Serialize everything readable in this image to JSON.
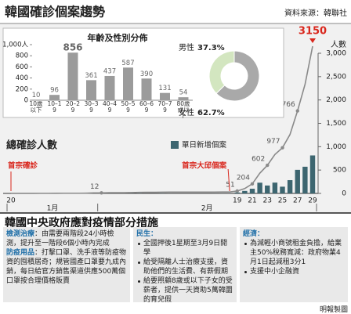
{
  "header": {
    "title": "韓國確診個案趨勢",
    "source": "資料來源：韓聯社"
  },
  "chart_data": [
    {
      "type": "bar",
      "title": "年齡及性別分佈",
      "categories": [
        "10歲以下",
        "10–19",
        "20–29",
        "30–39",
        "40–49",
        "50–59",
        "60–69",
        "70–79",
        "80歲或以上"
      ],
      "values": [
        10,
        96,
        856,
        361,
        437,
        587,
        390,
        131,
        54
      ],
      "color": "#9b9b9b",
      "ylim": [
        0,
        1000
      ],
      "yticks": [
        0,
        200,
        400,
        600,
        800,
        {
          "value": 1000,
          "label": "1,000人"
        }
      ]
    },
    {
      "type": "pie",
      "categories": [
        "男性",
        "女性"
      ],
      "values": [
        37.3,
        62.7
      ],
      "value_labels": [
        "37.3%",
        "62.7%"
      ],
      "colors": [
        "#d3e6c0",
        "#a9a9a9"
      ]
    },
    {
      "type": "bar-line",
      "categories": [
        "20",
        null,
        null,
        null,
        null,
        null,
        null,
        null,
        null,
        null,
        null,
        null,
        null,
        null,
        null,
        null,
        null,
        null,
        null,
        null,
        null,
        null,
        null,
        null,
        null,
        null,
        null,
        null,
        null,
        null,
        "19",
        null,
        "21",
        null,
        "23",
        null,
        "25",
        null,
        "27",
        null,
        "29"
      ],
      "months": [
        "1月",
        "2月"
      ],
      "series": [
        {
          "name": "單日新增個案",
          "type": "bar",
          "axis": "y2",
          "color": "#3d6670",
          "values": [
            1,
            0,
            0,
            0,
            1,
            0,
            1,
            1,
            0,
            0,
            2,
            5,
            1,
            3,
            0,
            1,
            3,
            4,
            1,
            0,
            3,
            1,
            0,
            0,
            0,
            0,
            0,
            1,
            1,
            1,
            20,
            53,
            100,
            229,
            169,
            231,
            144,
            284,
            505,
            571,
            813
          ]
        },
        {
          "name": "總確診人數",
          "type": "line",
          "axis": "y2",
          "color": "#8a8a8a",
          "values": [
            1,
            1,
            1,
            1,
            2,
            2,
            3,
            4,
            4,
            4,
            6,
            11,
            12,
            15,
            15,
            16,
            19,
            23,
            24,
            24,
            27,
            28,
            28,
            28,
            28,
            28,
            28,
            29,
            30,
            31,
            51,
            104,
            204,
            433,
            602,
            833,
            977,
            1261,
            1766,
            2337,
            3150
          ],
          "value_labels": [
            null,
            null,
            null,
            null,
            null,
            null,
            null,
            null,
            null,
            null,
            null,
            null,
            "12",
            null,
            null,
            null,
            null,
            null,
            null,
            null,
            null,
            null,
            null,
            null,
            null,
            null,
            null,
            null,
            null,
            null,
            "51",
            null,
            "204",
            null,
            "602",
            null,
            "977",
            null,
            "1,766",
            null,
            "3150"
          ]
        }
      ],
      "y2lim": [
        0,
        3000
      ],
      "y2ticks": [
        0,
        500,
        {
          "value": 1000,
          "label": "1,000"
        },
        {
          "value": 1500,
          "label": "1,500"
        },
        {
          "value": 2000,
          "label": "2,000"
        },
        {
          "value": 2500,
          "label": "2,500"
        },
        {
          "value": 3000,
          "label": "3,000"
        }
      ],
      "y2label": "人數",
      "annotations": [
        {
          "text": "首宗確診"
        },
        {
          "text": "首宗大邱個案"
        }
      ]
    }
  ],
  "measures": {
    "title": "韓國中央政府應對疫情部分措施",
    "columns": [
      {
        "items": [
          {
            "heading": "檢測治療",
            "text": "：由需要兩階段24小時檢測，提升至一階段6個小時內完成"
          },
          {
            "heading": "防疫用品",
            "text": "：打擊口罩、洗手液等防疫物資的囤積居奇；規管國產口罩要九成內銷，每日給官方銷售渠道供應500萬個口罩按合理價格販賣"
          }
        ]
      },
      {
        "heading": "民生：",
        "bullets": [
          "全國押後1星期至3月9日開學",
          "給受隔離人士治療支援，資助他們的生活費、有薪假期",
          "給要照顧8歲或以下子女的受薪者，提供一天資助5萬韓圜的育兒假"
        ]
      },
      {
        "heading": "經濟：",
        "bullets": [
          "為減輕小商號租金負擔，給業主50%稅務寬減：政府物業4月1日起減租3分1",
          "支援中小企融資"
        ]
      }
    ]
  },
  "footer": "明報製圖"
}
